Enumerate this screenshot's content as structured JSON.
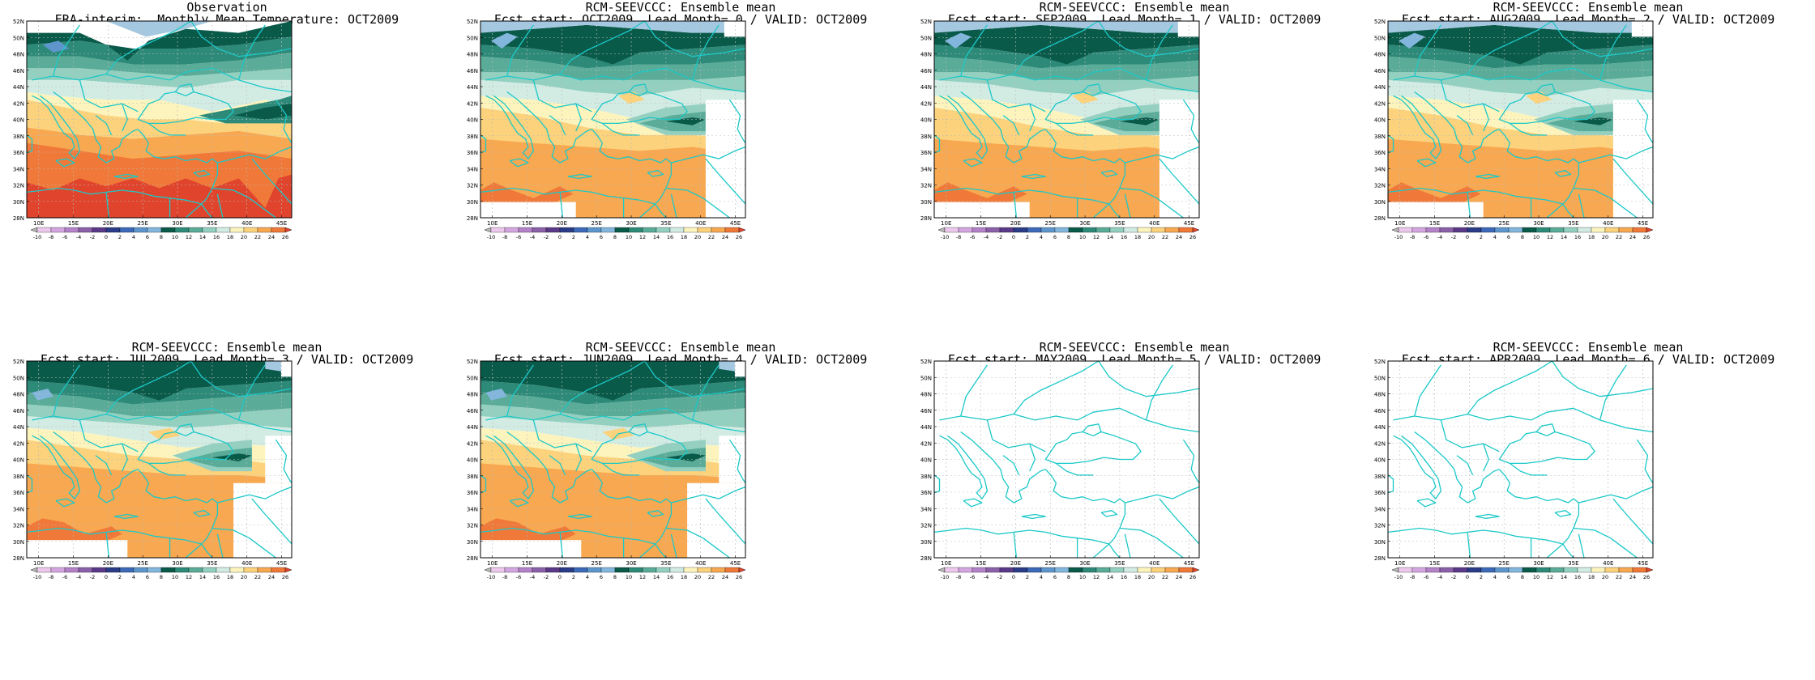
{
  "axes": {
    "lat_labels": [
      "52N",
      "50N",
      "48N",
      "46N",
      "44N",
      "42N",
      "40N",
      "38N",
      "36N",
      "34N",
      "32N",
      "30N",
      "28N"
    ],
    "lon_labels": [
      "10E",
      "15E",
      "20E",
      "25E",
      "30E",
      "35E",
      "40E",
      "45E"
    ]
  },
  "colorbar": {
    "labels": [
      "-10",
      "-8",
      "-6",
      "-4",
      "-2",
      "0",
      "2",
      "4",
      "6",
      "8",
      "10",
      "12",
      "14",
      "16",
      "18",
      "20",
      "22",
      "24",
      "26"
    ],
    "colors": [
      "#b8b8b8",
      "#ecc8ec",
      "#d4a6e0",
      "#b482c8",
      "#8a60a8",
      "#5a3a88",
      "#2a3c88",
      "#3c6ab8",
      "#5e96cc",
      "#82b6dc",
      "#0a5a4a",
      "#2e8a78",
      "#5aac98",
      "#94d0c0",
      "#d2ece4",
      "#fcf4bc",
      "#fcd27c",
      "#f8a850",
      "#f07838",
      "#e0442c"
    ]
  },
  "panels": [
    {
      "title_line1": "Observation",
      "title_line2": "ERA-interim:  Monthly Mean Temperature: OCT2009",
      "filled": true,
      "style": "obs"
    },
    {
      "title_line1": "RCM-SEEVCCC: Ensemble mean",
      "title_line2": "Fcst start: OCT2009  Lead Month= 0 / VALID: OCT2009",
      "filled": true,
      "style": "fcst"
    },
    {
      "title_line1": "RCM-SEEVCCC: Ensemble mean",
      "title_line2": "Fcst start: SEP2009  Lead Month= 1 / VALID: OCT2009",
      "filled": true,
      "style": "fcst"
    },
    {
      "title_line1": "RCM-SEEVCCC: Ensemble mean",
      "title_line2": "Fcst start: AUG2009  Lead Month= 2 / VALID: OCT2009",
      "filled": true,
      "style": "fcst"
    },
    {
      "title_line1": "RCM-SEEVCCC: Ensemble mean",
      "title_line2": "Fcst start: JUL2009  Lead Month= 3 / VALID: OCT2009",
      "filled": true,
      "style": "fcst2"
    },
    {
      "title_line1": "RCM-SEEVCCC: Ensemble mean",
      "title_line2": "Fcst start: JUN2009  Lead Month= 4 / VALID: OCT2009",
      "filled": true,
      "style": "fcst2"
    },
    {
      "title_line1": "RCM-SEEVCCC: Ensemble mean",
      "title_line2": "Fcst start: MAY2009  Lead Month= 5 / VALID: OCT2009",
      "filled": false,
      "style": "empty"
    },
    {
      "title_line1": "RCM-SEEVCCC: Ensemble mean",
      "title_line2": "Fcst start: APR2009  Lead Month= 6 / VALID: OCT2009",
      "filled": false,
      "style": "empty"
    }
  ]
}
